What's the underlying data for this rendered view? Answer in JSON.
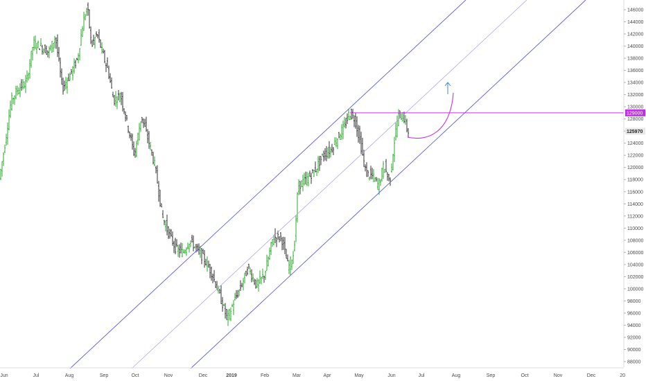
{
  "chart_data": {
    "type": "candlestick",
    "y_axis": {
      "position": "right",
      "ticks": [
        88000,
        90000,
        92000,
        94000,
        96000,
        98000,
        100000,
        102000,
        104000,
        106000,
        108000,
        110000,
        112000,
        114000,
        116000,
        118000,
        120000,
        122000,
        124000,
        126000,
        128000,
        130000,
        132000,
        134000,
        136000,
        138000,
        140000,
        142000,
        144000,
        146000
      ],
      "range": [
        86500,
        147200
      ]
    },
    "x_axis": {
      "ticks": [
        "Jun",
        "Jul",
        "Aug",
        "Sep",
        "Oct",
        "Nov",
        "Dec",
        "2019",
        "Feb",
        "Mar",
        "Apr",
        "May",
        "Jun",
        "Jul",
        "Aug",
        "Sep",
        "Oct",
        "Nov",
        "Dec",
        "20"
      ],
      "emphasized": [
        "2019"
      ]
    },
    "price_markers": [
      {
        "label": "129000",
        "value": 129000,
        "style": "highlighted",
        "color": "#c030e8"
      },
      {
        "label": "125970",
        "value": 125970,
        "style": "current",
        "color": "#e8e8e8"
      }
    ],
    "colors": {
      "up": "#2aa82a",
      "down": "#333333",
      "channel": "#5b5be0",
      "midline": "#b0a8e8",
      "resistance": "#c030e8",
      "projection_curve": "#c030e8",
      "projection_arrow": "#3a8ad8"
    },
    "series_keypoints": [
      [
        0,
        117500
      ],
      [
        8,
        123000
      ],
      [
        18,
        131000
      ],
      [
        28,
        133000
      ],
      [
        40,
        134000
      ],
      [
        50,
        140500
      ],
      [
        60,
        140000
      ],
      [
        72,
        139000
      ],
      [
        82,
        141500
      ],
      [
        92,
        133000
      ],
      [
        104,
        135500
      ],
      [
        114,
        138000
      ],
      [
        122,
        144000
      ],
      [
        128,
        146500
      ],
      [
        134,
        140000
      ],
      [
        142,
        142000
      ],
      [
        152,
        138000
      ],
      [
        158,
        136000
      ],
      [
        166,
        131000
      ],
      [
        176,
        132000
      ],
      [
        186,
        127000
      ],
      [
        196,
        122000
      ],
      [
        206,
        128500
      ],
      [
        216,
        124500
      ],
      [
        226,
        120000
      ],
      [
        236,
        112000
      ],
      [
        244,
        109500
      ],
      [
        256,
        106500
      ],
      [
        266,
        106000
      ],
      [
        276,
        108000
      ],
      [
        286,
        106500
      ],
      [
        296,
        105000
      ],
      [
        308,
        102500
      ],
      [
        320,
        98500
      ],
      [
        330,
        95000
      ],
      [
        340,
        98000
      ],
      [
        350,
        100500
      ],
      [
        360,
        103500
      ],
      [
        372,
        100500
      ],
      [
        384,
        102500
      ],
      [
        396,
        108500
      ],
      [
        408,
        108500
      ],
      [
        418,
        103500
      ],
      [
        426,
        106000
      ],
      [
        432,
        117000
      ],
      [
        444,
        118000
      ],
      [
        456,
        119500
      ],
      [
        468,
        122000
      ],
      [
        480,
        123000
      ],
      [
        492,
        125500
      ],
      [
        500,
        127000
      ],
      [
        506,
        129000
      ],
      [
        514,
        128000
      ],
      [
        522,
        124000
      ],
      [
        530,
        119000
      ],
      [
        540,
        118500
      ],
      [
        548,
        117000
      ],
      [
        556,
        120500
      ],
      [
        564,
        117500
      ],
      [
        570,
        123500
      ],
      [
        576,
        128500
      ],
      [
        584,
        128500
      ],
      [
        590,
        125970
      ]
    ]
  }
}
